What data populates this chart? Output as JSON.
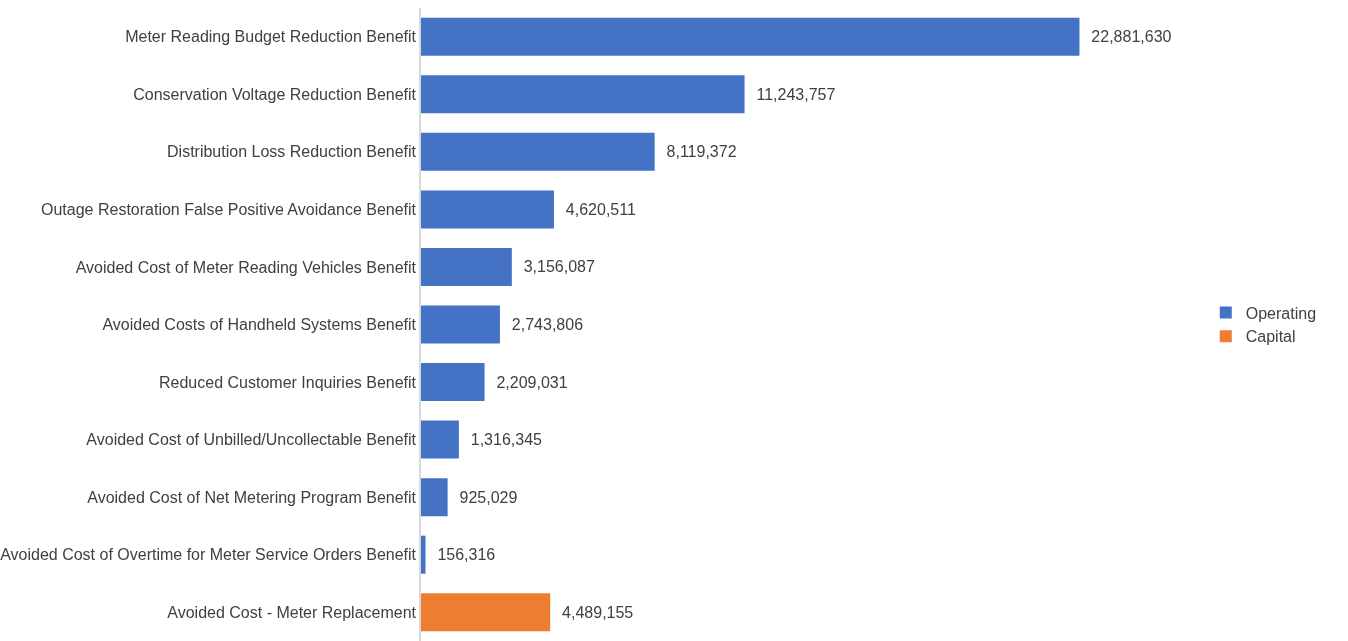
{
  "chart_data": {
    "type": "bar",
    "orientation": "horizontal",
    "legend": "right",
    "categories": [
      "Meter Reading Budget Reduction Benefit",
      "Conservation Voltage Reduction Benefit",
      "Distribution Loss Reduction Benefit",
      "Outage Restoration False Positive Avoidance Benefit",
      "Avoided Cost of Meter Reading Vehicles Benefit",
      "Avoided Costs of Handheld Systems Benefit",
      "Reduced Customer Inquiries Benefit",
      "Avoided Cost of Unbilled/Uncollectable Benefit",
      "Avoided Cost of Net Metering Program Benefit",
      "Avoided Cost of Overtime for Meter Service Orders Benefit",
      "Avoided Cost - Meter Replacement"
    ],
    "series": [
      {
        "name": "Operating",
        "color": "#4472c4",
        "values": [
          22881630,
          11243757,
          8119372,
          4620511,
          3156087,
          2743806,
          2209031,
          1316345,
          925029,
          156316,
          null
        ],
        "value_labels": [
          "22,881,630",
          "11,243,757",
          "8,119,372",
          "4,620,511",
          "3,156,087",
          "2,743,806",
          "2,209,031",
          "1,316,345",
          "925,029",
          "156,316",
          null
        ]
      },
      {
        "name": "Capital",
        "color": "#ed7d31",
        "values": [
          null,
          null,
          null,
          null,
          null,
          null,
          null,
          null,
          null,
          null,
          4489155
        ],
        "value_labels": [
          null,
          null,
          null,
          null,
          null,
          null,
          null,
          null,
          null,
          null,
          "4,489,155"
        ]
      }
    ]
  }
}
